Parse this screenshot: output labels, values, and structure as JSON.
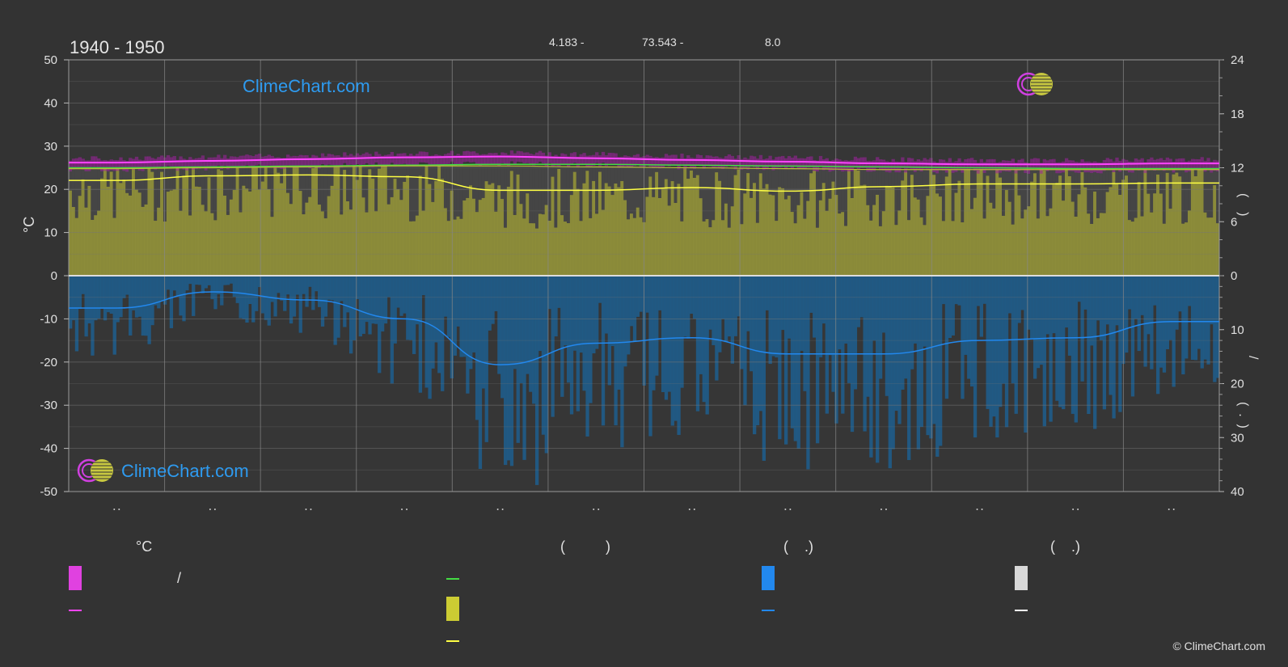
{
  "title": "1940 - 1950",
  "top_stats": [
    "4.183 -",
    "73.543 -",
    "8.0"
  ],
  "left_axis_unit": "°C",
  "right_axis_top_label": "(    )",
  "right_axis_bottom_label": "(  .  )",
  "right_axis_sep": "/",
  "brand": "ClimeChart.com",
  "copyright": "© ClimeChart.com",
  "legend": {
    "col1_header": "°C",
    "col1_range_sep": "/",
    "col2_header": "(          )",
    "col3_header": "(    .)",
    "col4_header": "(    .)"
  },
  "colors": {
    "background": "#333333",
    "max_temp": "#ff44ff",
    "mean_temp": "#44dd44",
    "daylight": "#cccc33",
    "sunshine": "#ffff44",
    "rain": "#2288ee",
    "snow": "#ffffff"
  },
  "chart_data": {
    "type": "area",
    "title": "1940 - 1950",
    "months": 12,
    "ylim_left": [
      -50,
      50
    ],
    "left_ticks": [
      50,
      40,
      30,
      20,
      10,
      0,
      -10,
      -20,
      -30,
      -40,
      -50
    ],
    "right_ticks_top": [
      24,
      18,
      12,
      6,
      0
    ],
    "right_ticks_bottom": [
      10,
      20,
      30,
      40
    ],
    "ylim_right_top_hours": [
      0,
      24
    ],
    "ylim_right_bottom_mm": [
      0,
      40
    ],
    "grid": true,
    "series": [
      {
        "values": [
          26.2,
          26.6,
          27.0,
          27.4,
          27.6,
          27.2,
          26.8,
          26.4,
          26.0,
          25.8,
          25.8,
          26.0
        ]
      },
      {
        "values": [
          25.0,
          25.2,
          25.4,
          25.6,
          25.8,
          25.8,
          25.6,
          25.4,
          25.2,
          25.0,
          24.8,
          24.8
        ]
      },
      {
        "values": [
          11.9,
          12.0,
          12.1,
          12.2,
          12.2,
          12.1,
          12.0,
          11.9,
          11.8,
          11.8,
          11.8,
          11.8
        ]
      },
      {
        "values": [
          10.6,
          11.1,
          11.2,
          11.0,
          9.5,
          9.5,
          9.8,
          9.4,
          9.9,
          10.2,
          10.2,
          10.3
        ]
      },
      {
        "values": [
          6.0,
          3.0,
          4.5,
          8.0,
          16.5,
          12.5,
          11.5,
          14.5,
          14.5,
          12.0,
          11.5,
          8.5
        ]
      }
    ]
  }
}
